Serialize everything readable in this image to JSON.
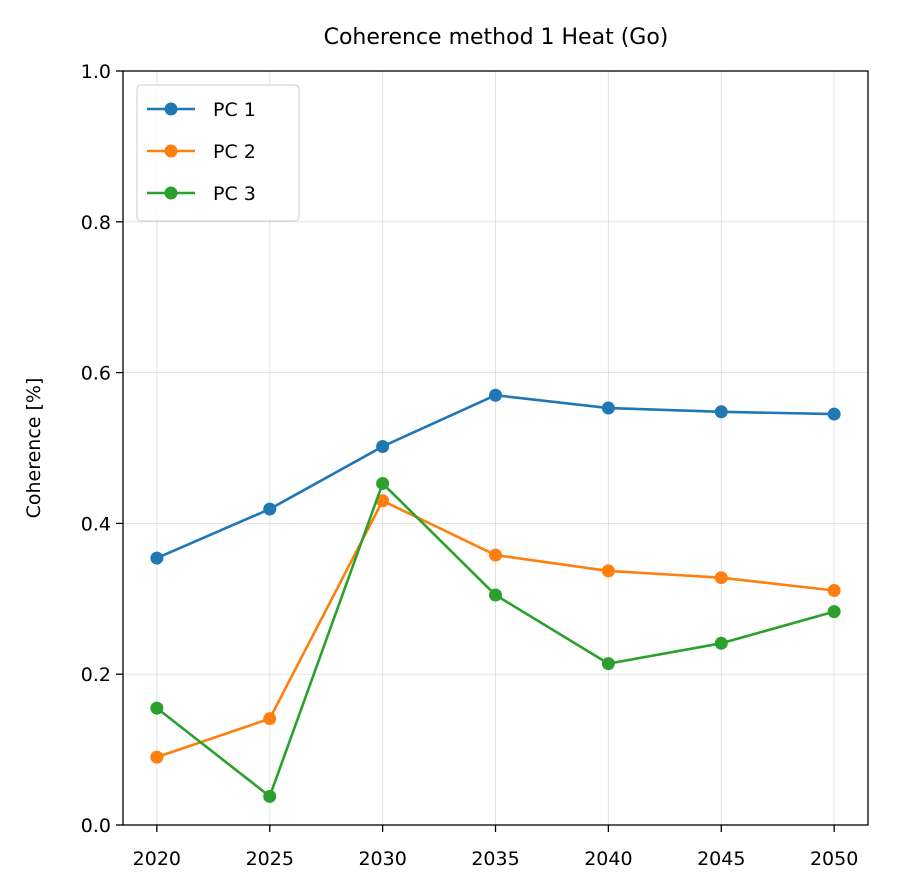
{
  "chart_data": {
    "type": "line",
    "title": "Coherence method 1 Heat (Go)",
    "xlabel": "",
    "ylabel": "Coherence [%]",
    "x": [
      2020,
      2025,
      2030,
      2035,
      2040,
      2045,
      2050
    ],
    "xticks": [
      "2020",
      "2025",
      "2030",
      "2035",
      "2040",
      "2045",
      "2050"
    ],
    "ylim": [
      0,
      1
    ],
    "yticks": [
      "0.0",
      "0.2",
      "0.4",
      "0.6",
      "0.8",
      "1.0"
    ],
    "grid": true,
    "legend_position": "top-left",
    "series": [
      {
        "name": "PC 1",
        "color": "#1f77b4",
        "values": [
          0.354,
          0.419,
          0.502,
          0.57,
          0.553,
          0.548,
          0.545
        ]
      },
      {
        "name": "PC 2",
        "color": "#ff7f0e",
        "values": [
          0.09,
          0.141,
          0.43,
          0.358,
          0.337,
          0.328,
          0.311
        ]
      },
      {
        "name": "PC 3",
        "color": "#2ca02c",
        "values": [
          0.155,
          0.038,
          0.453,
          0.305,
          0.214,
          0.241,
          0.283
        ]
      }
    ]
  }
}
